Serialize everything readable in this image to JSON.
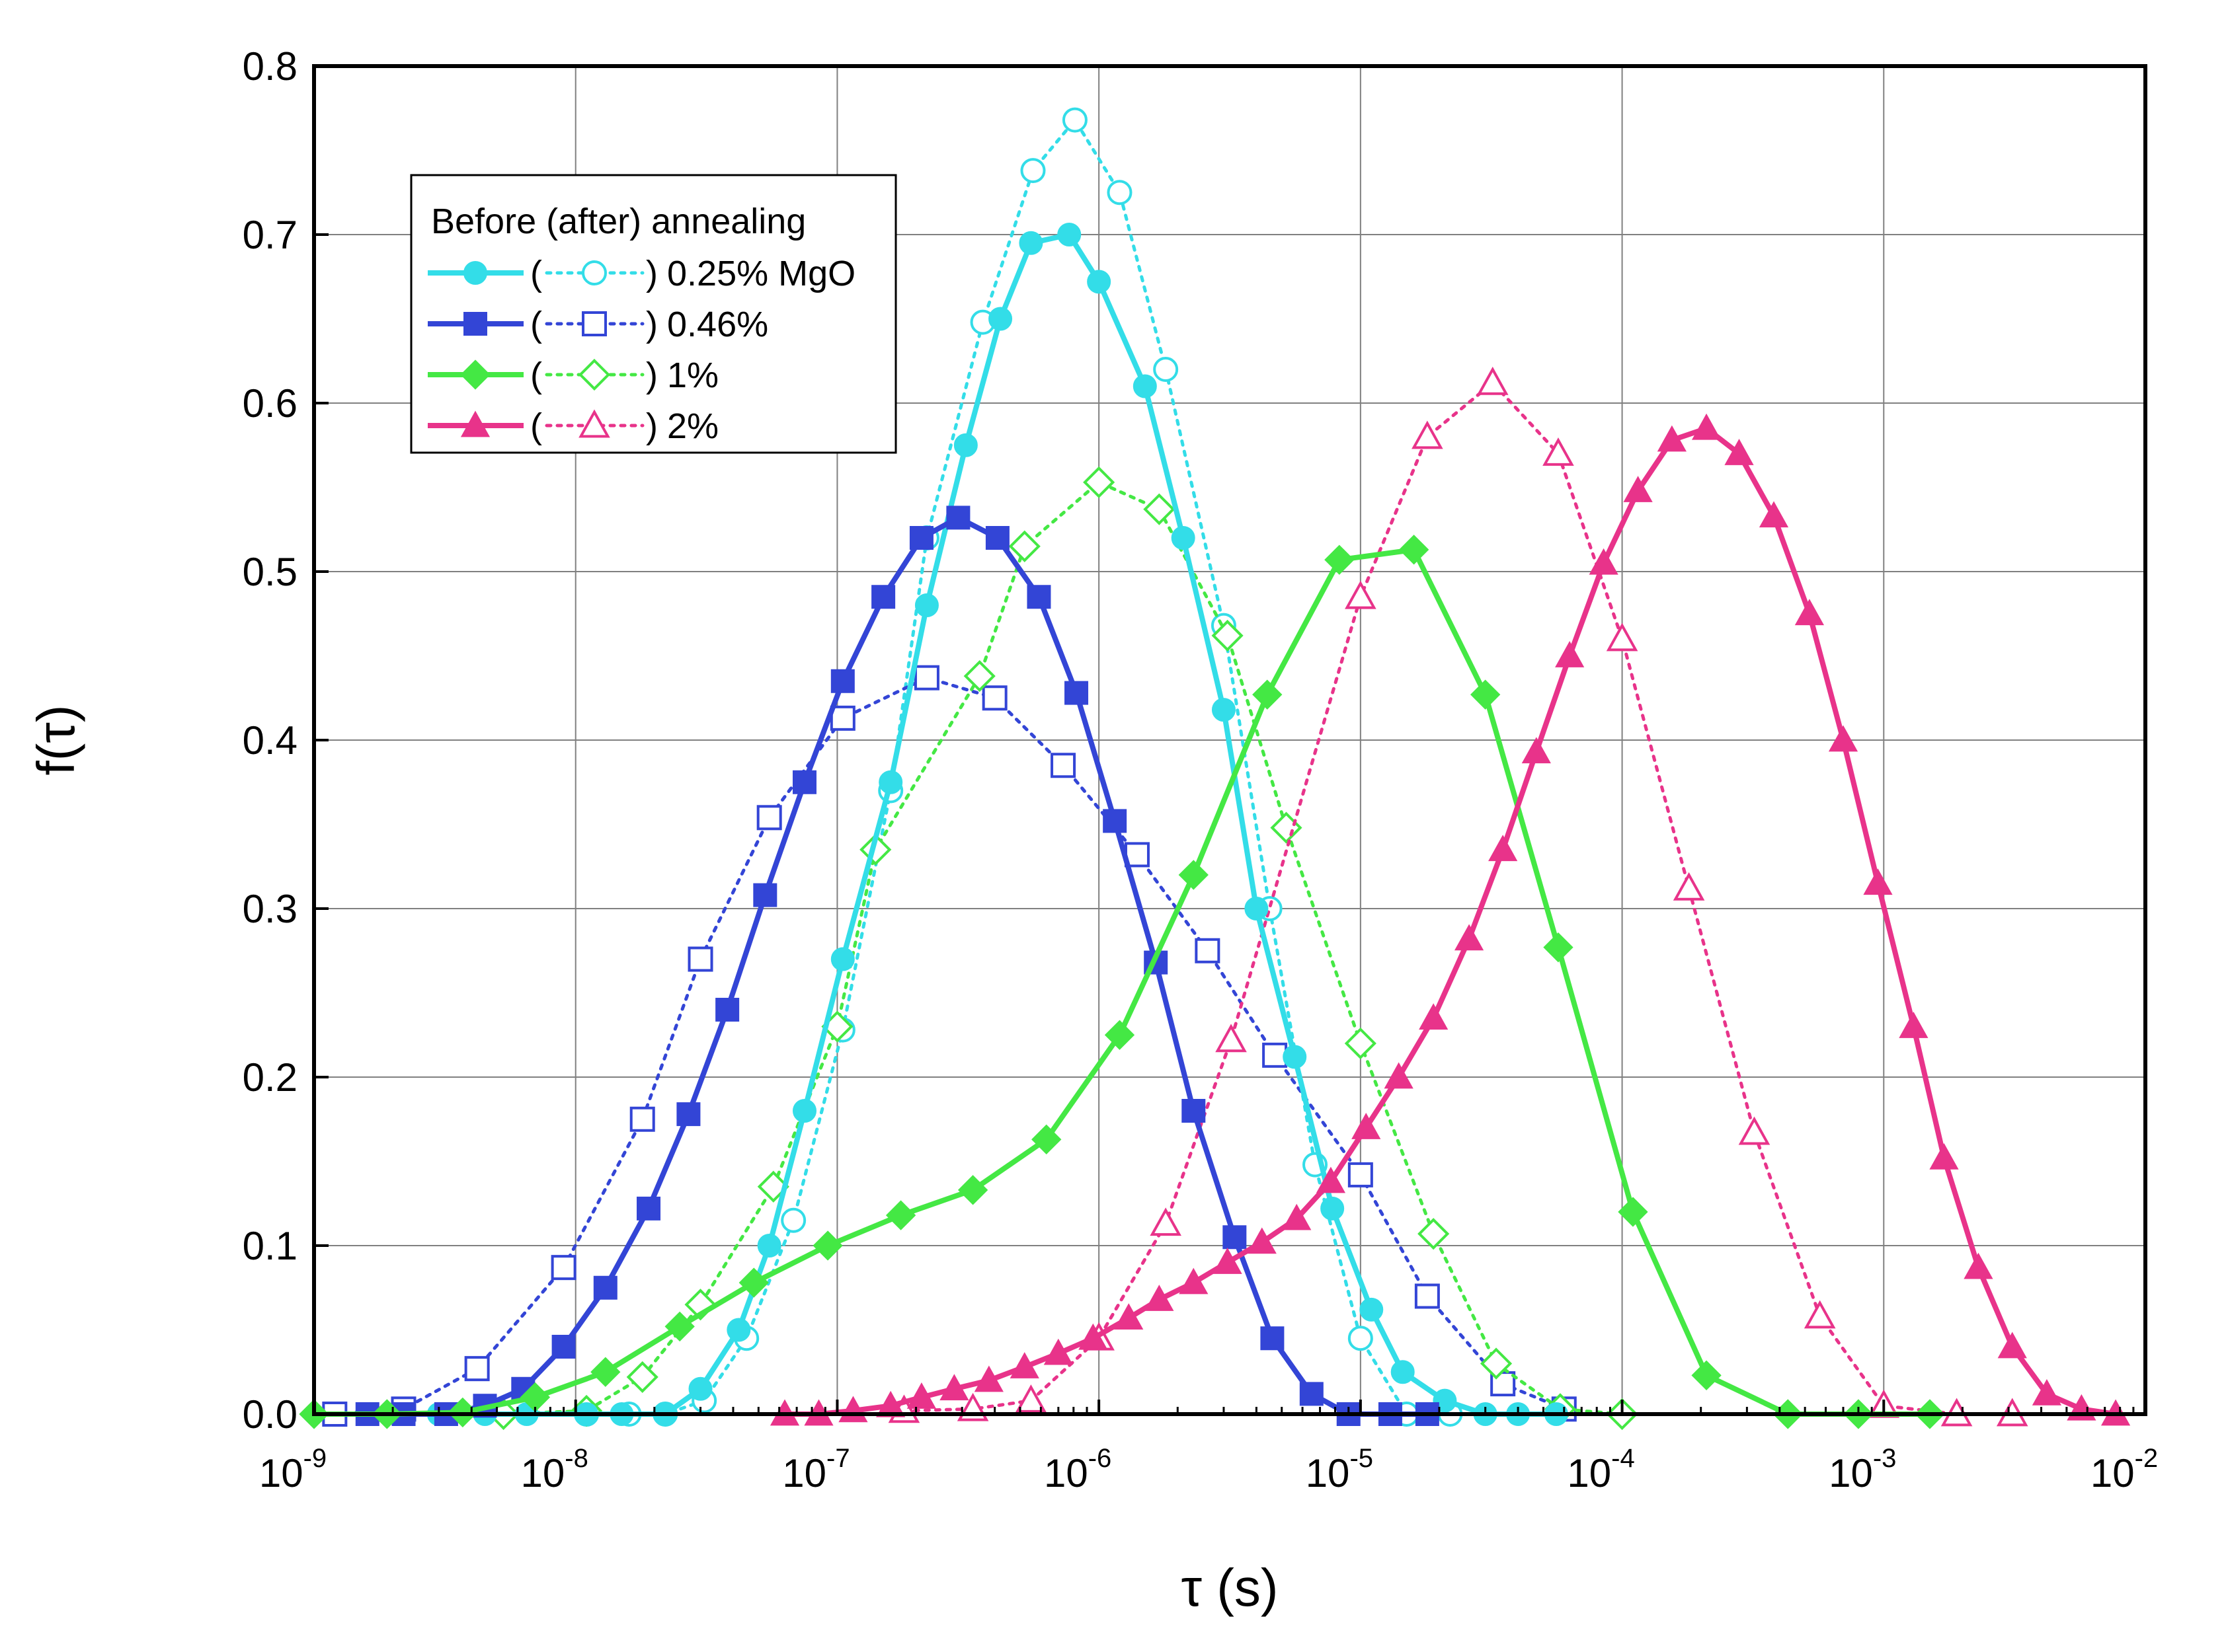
{
  "chart_data": {
    "type": "line",
    "xscale": "log",
    "xlabel": "τ (s)",
    "ylabel": "f(τ)",
    "xlim": [
      1e-09,
      0.01
    ],
    "ylim": [
      0,
      0.8
    ],
    "grid": true,
    "x_ticks": [
      {
        "base": "10",
        "exp": "-9",
        "value": 1e-09
      },
      {
        "base": "10",
        "exp": "-8",
        "value": 1e-08
      },
      {
        "base": "10",
        "exp": "-7",
        "value": 1e-07
      },
      {
        "base": "10",
        "exp": "-6",
        "value": 1e-06
      },
      {
        "base": "10",
        "exp": "-5",
        "value": 1e-05
      },
      {
        "base": "10",
        "exp": "-4",
        "value": 0.0001
      },
      {
        "base": "10",
        "exp": "-3",
        "value": 0.001
      },
      {
        "base": "10",
        "exp": "-2",
        "value": 0.01
      }
    ],
    "y_ticks": [
      "0.0",
      "0.1",
      "0.2",
      "0.3",
      "0.4",
      "0.5",
      "0.6",
      "0.7",
      "0.8"
    ],
    "legend": {
      "title": "Before (after) annealing",
      "placement": "top-left",
      "entries": [
        "0.25% MgO",
        "0.46%",
        "1%",
        "2%"
      ]
    },
    "series": [
      {
        "name": "0.25% MgO before annealing",
        "legend_label": "0.25% MgO",
        "state": "before",
        "color": "#33DDE8",
        "marker": "circle",
        "filled": true,
        "dashed": false,
        "points": [
          [
            2.2e-09,
            0
          ],
          [
            3e-09,
            0
          ],
          [
            4.5e-09,
            0
          ],
          [
            6.5e-09,
            0
          ],
          [
            1.1e-08,
            0
          ],
          [
            1.5e-08,
            0
          ],
          [
            2.2e-08,
            0
          ],
          [
            3e-08,
            0.015
          ],
          [
            4.2e-08,
            0.05
          ],
          [
            5.5e-08,
            0.1
          ],
          [
            7.5e-08,
            0.18
          ],
          [
            1.05e-07,
            0.27
          ],
          [
            1.6e-07,
            0.375
          ],
          [
            2.2e-07,
            0.48
          ],
          [
            3.1e-07,
            0.575
          ],
          [
            4.2e-07,
            0.65
          ],
          [
            5.5e-07,
            0.695
          ],
          [
            7.7e-07,
            0.7
          ],
          [
            1e-06,
            0.672
          ],
          [
            1.5e-06,
            0.61
          ],
          [
            2.1e-06,
            0.52
          ],
          [
            3e-06,
            0.418
          ],
          [
            4e-06,
            0.3
          ],
          [
            5.6e-06,
            0.212
          ],
          [
            7.8e-06,
            0.122
          ],
          [
            1.1e-05,
            0.062
          ],
          [
            1.45e-05,
            0.025
          ],
          [
            2.1e-05,
            0.008
          ],
          [
            3e-05,
            0
          ],
          [
            4e-05,
            0
          ],
          [
            5.6e-05,
            0
          ]
        ]
      },
      {
        "name": "0.25% MgO after annealing",
        "legend_label": "0.25% MgO",
        "state": "after",
        "color": "#33DDE8",
        "marker": "circle",
        "filled": false,
        "dashed": true,
        "points": [
          [
            1.1e-08,
            0
          ],
          [
            1.6e-08,
            0
          ],
          [
            2.2e-08,
            0
          ],
          [
            3.1e-08,
            0.008
          ],
          [
            4.5e-08,
            0.045
          ],
          [
            6.8e-08,
            0.115
          ],
          [
            1.05e-07,
            0.228
          ],
          [
            1.6e-07,
            0.37
          ],
          [
            2.2e-07,
            0.52
          ],
          [
            3.6e-07,
            0.648
          ],
          [
            5.6e-07,
            0.738
          ],
          [
            8.1e-07,
            0.768
          ],
          [
            1.2e-06,
            0.725
          ],
          [
            1.8e-06,
            0.62
          ],
          [
            3e-06,
            0.468
          ],
          [
            4.5e-06,
            0.3
          ],
          [
            6.7e-06,
            0.148
          ],
          [
            1e-05,
            0.045
          ],
          [
            1.5e-05,
            0
          ],
          [
            2.2e-05,
            0
          ]
        ]
      },
      {
        "name": "0.46% before annealing",
        "legend_label": "0.46%",
        "state": "before",
        "color": "#3345D6",
        "marker": "square",
        "filled": true,
        "dashed": false,
        "points": [
          [
            1.6e-09,
            0
          ],
          [
            2.2e-09,
            0
          ],
          [
            3.2e-09,
            0
          ],
          [
            4.5e-09,
            0.005
          ],
          [
            6.3e-09,
            0.015
          ],
          [
            9e-09,
            0.04
          ],
          [
            1.3e-08,
            0.075
          ],
          [
            1.9e-08,
            0.122
          ],
          [
            2.7e-08,
            0.178
          ],
          [
            3.8e-08,
            0.24
          ],
          [
            5.3e-08,
            0.308
          ],
          [
            7.5e-08,
            0.375
          ],
          [
            1.05e-07,
            0.435
          ],
          [
            1.5e-07,
            0.485
          ],
          [
            2.1e-07,
            0.52
          ],
          [
            2.9e-07,
            0.532
          ],
          [
            4.1e-07,
            0.52
          ],
          [
            5.9e-07,
            0.485
          ],
          [
            8.2e-07,
            0.428
          ],
          [
            1.15e-06,
            0.352
          ],
          [
            1.65e-06,
            0.268
          ],
          [
            2.3e-06,
            0.18
          ],
          [
            3.3e-06,
            0.105
          ],
          [
            4.6e-06,
            0.045
          ],
          [
            6.5e-06,
            0.012
          ],
          [
            9e-06,
            0
          ],
          [
            1.3e-05,
            0
          ],
          [
            1.8e-05,
            0
          ]
        ]
      },
      {
        "name": "0.46% after annealing",
        "legend_label": "0.46%",
        "state": "after",
        "color": "#3345D6",
        "marker": "square",
        "filled": false,
        "dashed": true,
        "points": [
          [
            1.2e-09,
            0
          ],
          [
            2.2e-09,
            0.003
          ],
          [
            4.2e-09,
            0.027
          ],
          [
            9e-09,
            0.087
          ],
          [
            1.8e-08,
            0.175
          ],
          [
            3e-08,
            0.27
          ],
          [
            5.5e-08,
            0.354
          ],
          [
            1.05e-07,
            0.413
          ],
          [
            2.2e-07,
            0.437
          ],
          [
            4e-07,
            0.425
          ],
          [
            7.3e-07,
            0.385
          ],
          [
            1.4e-06,
            0.332
          ],
          [
            2.6e-06,
            0.275
          ],
          [
            4.7e-06,
            0.213
          ],
          [
            1e-05,
            0.142
          ],
          [
            1.8e-05,
            0.07
          ],
          [
            3.5e-05,
            0.018
          ],
          [
            6e-05,
            0.003
          ]
        ]
      },
      {
        "name": "1% before annealing",
        "legend_label": "1%",
        "state": "before",
        "color": "#44E844",
        "marker": "diamond",
        "filled": true,
        "dashed": false,
        "points": [
          [
            1e-09,
            0
          ],
          [
            1.9e-09,
            0
          ],
          [
            3.7e-09,
            0.001
          ],
          [
            7e-09,
            0.01
          ],
          [
            1.3e-08,
            0.025
          ],
          [
            2.5e-08,
            0.052
          ],
          [
            4.8e-08,
            0.078
          ],
          [
            9.2e-08,
            0.1
          ],
          [
            1.75e-07,
            0.118
          ],
          [
            3.3e-07,
            0.133
          ],
          [
            6.3e-07,
            0.163
          ],
          [
            1.2e-06,
            0.225
          ],
          [
            2.3e-06,
            0.32
          ],
          [
            4.4e-06,
            0.427
          ],
          [
            8.3e-06,
            0.507
          ],
          [
            1.6e-05,
            0.513
          ],
          [
            3e-05,
            0.427
          ],
          [
            5.7e-05,
            0.277
          ],
          [
            0.00011,
            0.12
          ],
          [
            0.00021,
            0.023
          ],
          [
            0.00043,
            0
          ],
          [
            0.0008,
            0
          ],
          [
            0.0015,
            0
          ]
        ]
      },
      {
        "name": "1% after annealing",
        "legend_label": "1%",
        "state": "after",
        "color": "#44E844",
        "marker": "diamond",
        "filled": false,
        "dashed": true,
        "points": [
          [
            5.3e-09,
            0
          ],
          [
            1.1e-08,
            0.002
          ],
          [
            1.8e-08,
            0.022
          ],
          [
            3e-08,
            0.065
          ],
          [
            5.7e-08,
            0.135
          ],
          [
            1e-07,
            0.23
          ],
          [
            1.4e-07,
            0.335
          ],
          [
            3.5e-07,
            0.438
          ],
          [
            5.2e-07,
            0.515
          ],
          [
            1e-06,
            0.553
          ],
          [
            1.7e-06,
            0.537
          ],
          [
            3.1e-06,
            0.462
          ],
          [
            5.2e-06,
            0.348
          ],
          [
            1e-05,
            0.22
          ],
          [
            1.9e-05,
            0.107
          ],
          [
            3.3e-05,
            0.03
          ],
          [
            5.8e-05,
            0.003
          ],
          [
            0.0001,
            0
          ]
        ]
      },
      {
        "name": "2% before annealing",
        "legend_label": "2%",
        "state": "before",
        "color": "#E8338A",
        "marker": "triangle",
        "filled": true,
        "dashed": false,
        "points": [
          [
            6.3e-08,
            0
          ],
          [
            8.5e-08,
            0
          ],
          [
            1.15e-07,
            0.002
          ],
          [
            1.6e-07,
            0.005
          ],
          [
            2.1e-07,
            0.01
          ],
          [
            2.8e-07,
            0.015
          ],
          [
            3.8e-07,
            0.02
          ],
          [
            5.2e-07,
            0.028
          ],
          [
            7e-07,
            0.036
          ],
          [
            9.5e-07,
            0.045
          ],
          [
            1.3e-06,
            0.057
          ],
          [
            1.7e-06,
            0.068
          ],
          [
            2.3e-06,
            0.078
          ],
          [
            3.1e-06,
            0.09
          ],
          [
            4.2e-06,
            0.102
          ],
          [
            5.7e-06,
            0.116
          ],
          [
            7.7e-06,
            0.138
          ],
          [
            1.05e-05,
            0.17
          ],
          [
            1.4e-05,
            0.2
          ],
          [
            1.9e-05,
            0.235
          ],
          [
            2.6e-05,
            0.282
          ],
          [
            3.5e-05,
            0.335
          ],
          [
            4.7e-05,
            0.393
          ],
          [
            6.3e-05,
            0.45
          ],
          [
            8.5e-05,
            0.505
          ],
          [
            0.000115,
            0.548
          ],
          [
            0.000155,
            0.578
          ],
          [
            0.00021,
            0.585
          ],
          [
            0.00028,
            0.57
          ],
          [
            0.00038,
            0.533
          ],
          [
            0.00052,
            0.475
          ],
          [
            0.0007,
            0.4
          ],
          [
            0.00095,
            0.315
          ],
          [
            0.0013,
            0.23
          ],
          [
            0.0017,
            0.152
          ],
          [
            0.0023,
            0.087
          ],
          [
            0.0031,
            0.04
          ],
          [
            0.0042,
            0.012
          ],
          [
            0.0057,
            0.003
          ],
          [
            0.0077,
            0
          ]
        ]
      },
      {
        "name": "2% after annealing",
        "legend_label": "2%",
        "state": "after",
        "color": "#E8338A",
        "marker": "triangle",
        "filled": false,
        "dashed": true,
        "points": [
          [
            1.8e-07,
            0.002
          ],
          [
            3.3e-07,
            0.003
          ],
          [
            5.5e-07,
            0.008
          ],
          [
            1e-06,
            0.045
          ],
          [
            1.8e-06,
            0.113
          ],
          [
            3.2e-06,
            0.222
          ],
          [
            1e-05,
            0.485
          ],
          [
            1.8e-05,
            0.58
          ],
          [
            3.2e-05,
            0.612
          ],
          [
            5.7e-05,
            0.57
          ],
          [
            0.0001,
            0.46
          ],
          [
            0.00018,
            0.312
          ],
          [
            0.00032,
            0.167
          ],
          [
            0.00057,
            0.058
          ],
          [
            0.001,
            0.005
          ],
          [
            0.0019,
            0
          ],
          [
            0.0031,
            0
          ]
        ]
      }
    ]
  }
}
